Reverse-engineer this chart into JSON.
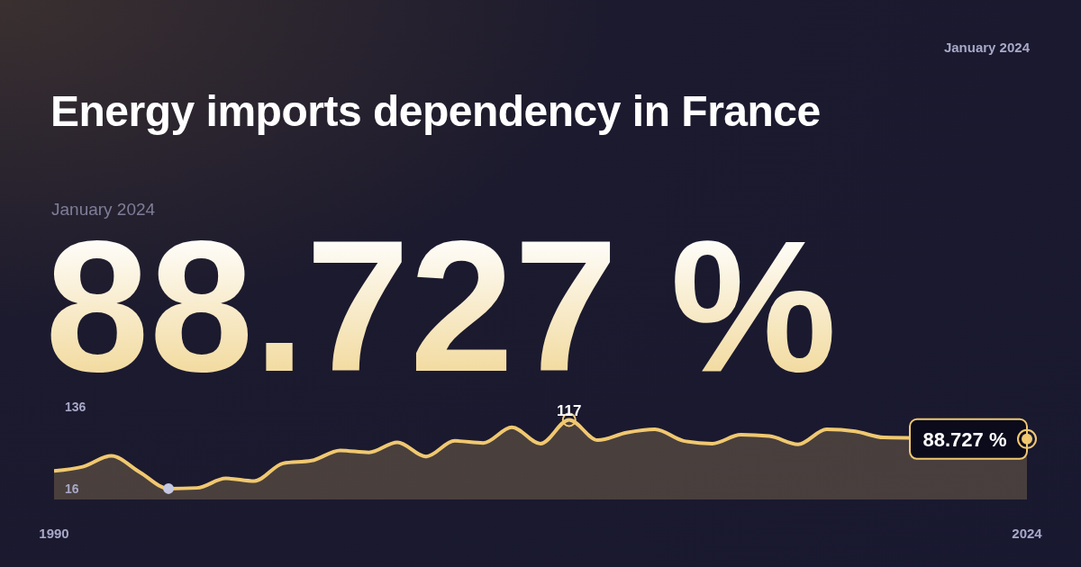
{
  "chart_data": {
    "type": "area",
    "title": "Energy imports dependency in France",
    "subtitle": "88.727 %",
    "annotations": [
      "January 2024",
      "January 2024"
    ],
    "x": [
      1990,
      1991,
      1992,
      1993,
      1994,
      1995,
      1996,
      1997,
      1998,
      1999,
      2000,
      2001,
      2002,
      2003,
      2004,
      2005,
      2006,
      2007,
      2008,
      2009,
      2010,
      2011,
      2012,
      2013,
      2014,
      2015,
      2016,
      2017,
      2018,
      2019,
      2020,
      2021,
      2022,
      2023,
      2024
    ],
    "series": [
      {
        "color": "#f0c870",
        "values": [
          42,
          48,
          64,
          40,
          16,
          17,
          31,
          27,
          53,
          57,
          72,
          69,
          84,
          63,
          86,
          83,
          106,
          82,
          117,
          87,
          98,
          103,
          86,
          82,
          95,
          93,
          81,
          103,
          100,
          91,
          null,
          null,
          null,
          null,
          88.727
        ],
        "value_labels": [
          null,
          null,
          null,
          null,
          null,
          null,
          null,
          null,
          null,
          null,
          null,
          null,
          null,
          null,
          null,
          null,
          null,
          null,
          "117",
          null,
          null,
          null,
          null,
          null,
          null,
          null,
          null,
          null,
          null,
          null,
          null,
          null,
          null,
          null,
          "88.727 %"
        ]
      },
      {
        "type": "scatter",
        "color": "#c5c8e0",
        "x": [
          1994
        ],
        "values": [
          16
        ]
      }
    ],
    "xlim": [
      1990,
      2024
    ],
    "xticks": [
      1990,
      2024
    ],
    "ylim": [
      0,
      136
    ],
    "yticks": [
      16,
      136
    ],
    "grid": false,
    "legend": false
  }
}
